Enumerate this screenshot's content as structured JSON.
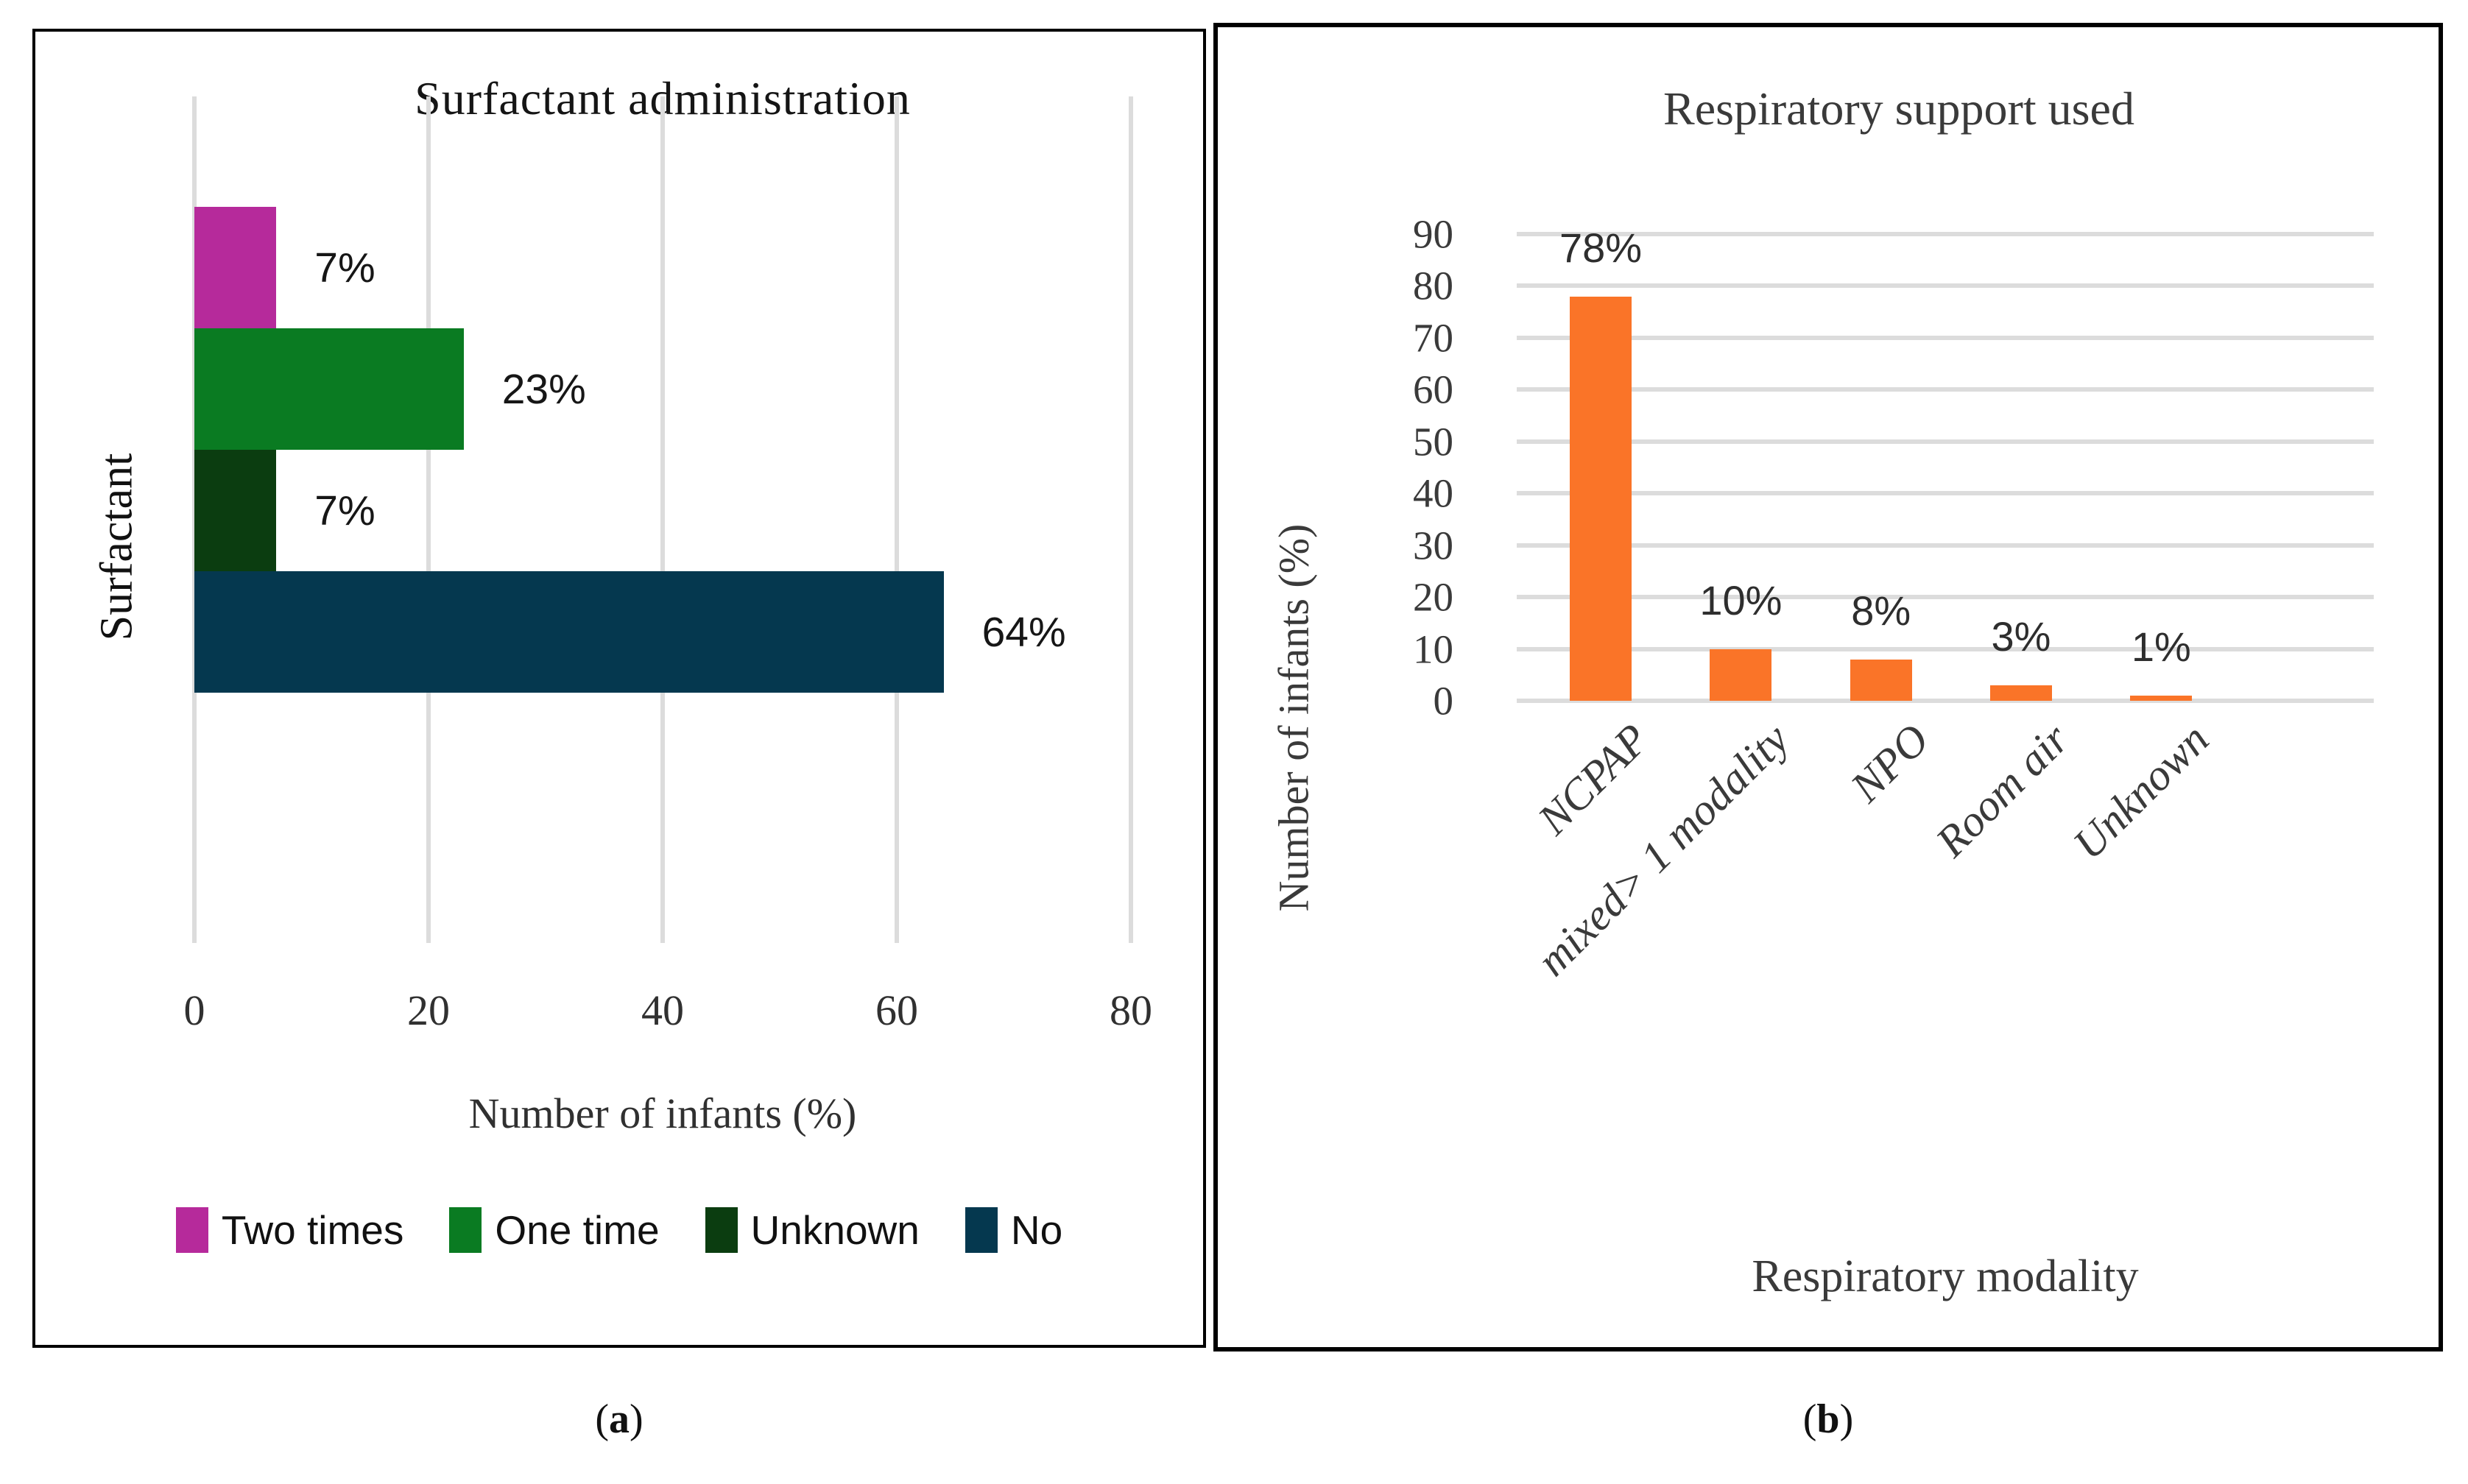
{
  "figure": {
    "captions": {
      "a": {
        "open": "(",
        "letter": "a",
        "close": ")"
      },
      "b": {
        "open": "(",
        "letter": "b",
        "close": ")"
      }
    }
  },
  "chart_data": [
    {
      "id": "a",
      "type": "bar",
      "orientation": "horizontal",
      "title": "Surfactant administration",
      "category_axis_label": "Surfactant",
      "xlabel": "Number of infants (%)",
      "xlim": [
        0,
        80
      ],
      "x_ticks": [
        0,
        20,
        40,
        60,
        80
      ],
      "grid": "vertical",
      "legend_position": "bottom",
      "series": [
        {
          "name": "Two times",
          "value": 7,
          "label": "7%",
          "color": "#B62A9B"
        },
        {
          "name": "One time",
          "value": 23,
          "label": "23%",
          "color": "#0A7B22"
        },
        {
          "name": "Unknown",
          "value": 7,
          "label": "7%",
          "color": "#0B3D10"
        },
        {
          "name": "No",
          "value": 64,
          "label": "64%",
          "color": "#05384F"
        }
      ]
    },
    {
      "id": "b",
      "type": "bar",
      "orientation": "vertical",
      "title": "Respiratory support used",
      "ylabel": "Number of infants (%)",
      "xlabel": "Respiratory modality",
      "ylim": [
        0,
        90
      ],
      "y_ticks": [
        0,
        10,
        20,
        30,
        40,
        50,
        60,
        70,
        80,
        90
      ],
      "grid": "horizontal",
      "bar_color": "#FA7428",
      "gridline_color": "#DCDCDC",
      "categories": [
        "NCPAP",
        "mixed> 1 modality",
        "NPO",
        "Room air",
        "Unknown"
      ],
      "values": [
        78,
        10,
        8,
        3,
        1
      ],
      "labels": [
        "78%",
        "10%",
        "8%",
        "3%",
        "1%"
      ]
    }
  ]
}
